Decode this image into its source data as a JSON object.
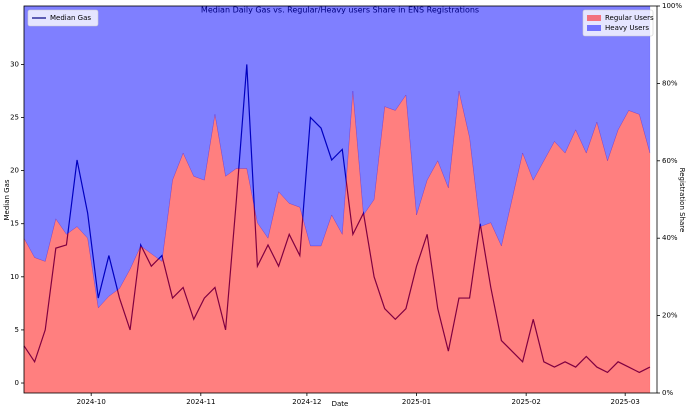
{
  "chart_data": {
    "type": "line",
    "title": "Median Daily Gas vs. Regular/Heavy users Share in ENS Registrations",
    "xlabel": "Date",
    "ylabel": "Median Gas",
    "y2label": "Registration Share",
    "x": [
      19978,
      19981,
      19984,
      19987,
      19990,
      19993,
      19996,
      19999,
      20002,
      20005,
      20008,
      20011,
      20014,
      20017,
      20020,
      20023,
      20026,
      20029,
      20032,
      20035,
      20038,
      20041,
      20044,
      20047,
      20050,
      20053,
      20056,
      20059,
      20062,
      20065,
      20068,
      20071,
      20074,
      20077,
      20080,
      20083,
      20086,
      20089,
      20092,
      20095,
      20098,
      20101,
      20104,
      20107,
      20110,
      20113,
      20116,
      20119,
      20122,
      20125,
      20128,
      20131,
      20134,
      20137,
      20140,
      20143,
      20146,
      20149,
      20152,
      20155
    ],
    "xlim": [
      19978,
      20157
    ],
    "xticks": [
      {
        "value": 19997,
        "label": "2024-10"
      },
      {
        "value": 20028,
        "label": "2024-11"
      },
      {
        "value": 20058,
        "label": "2024-12"
      },
      {
        "value": 20089,
        "label": "2025-01"
      },
      {
        "value": 20120,
        "label": "2025-02"
      },
      {
        "value": 20148,
        "label": "2025-03"
      }
    ],
    "ylim": [
      -0.94,
      35.5
    ],
    "yticks": [
      0,
      5,
      10,
      15,
      20,
      25,
      30
    ],
    "y2lim": [
      0,
      100
    ],
    "y2ticks": [
      {
        "value": 0,
        "label": "0%"
      },
      {
        "value": 20,
        "label": "20%"
      },
      {
        "value": 40,
        "label": "40%"
      },
      {
        "value": 60,
        "label": "60%"
      },
      {
        "value": 80,
        "label": "80%"
      },
      {
        "value": 100,
        "label": "100%"
      }
    ],
    "series": [
      {
        "name": "Median Gas",
        "type": "line",
        "color": "#000080",
        "legend": "upper left",
        "values": [
          3.5,
          2,
          5,
          12.7,
          13,
          21,
          16,
          8,
          12,
          8,
          5,
          13,
          11,
          12,
          8,
          9,
          6,
          8,
          9,
          5,
          17,
          30,
          11,
          13,
          11,
          14,
          12,
          25,
          24,
          21,
          22,
          14,
          16,
          10,
          7,
          6,
          7,
          11,
          14,
          7,
          3,
          8,
          8,
          15,
          9,
          4,
          3,
          2,
          6,
          2,
          1.5,
          2,
          1.5,
          2.5,
          1.5,
          1,
          2,
          1.5,
          1,
          1.5
        ]
      },
      {
        "name": "Regular Users",
        "type": "area",
        "axis": "y2",
        "color": "#ff0000",
        "legend": "upper right",
        "values": [
          40,
          35,
          34,
          45,
          41,
          43,
          40,
          22,
          25,
          27,
          32,
          38,
          36,
          34,
          55,
          62,
          56,
          55,
          72,
          56,
          58,
          58,
          44,
          40,
          52,
          49,
          48,
          38,
          38,
          46,
          41,
          78,
          46,
          50,
          74,
          73,
          77,
          46,
          55,
          60,
          53,
          78,
          66,
          43,
          44,
          38,
          50,
          62,
          55,
          60,
          65,
          62,
          68,
          62,
          70,
          60,
          68,
          73,
          72,
          62
        ]
      },
      {
        "name": "Heavy Users",
        "type": "area",
        "axis": "y2",
        "color": "#0000ff",
        "legend": "upper right",
        "values": [
          60,
          65,
          66,
          55,
          59,
          57,
          60,
          78,
          75,
          73,
          68,
          62,
          64,
          66,
          45,
          38,
          44,
          45,
          28,
          44,
          42,
          42,
          56,
          60,
          48,
          51,
          52,
          62,
          62,
          54,
          59,
          22,
          54,
          50,
          26,
          27,
          23,
          54,
          45,
          40,
          47,
          22,
          34,
          57,
          56,
          62,
          50,
          38,
          45,
          40,
          35,
          38,
          32,
          38,
          30,
          40,
          32,
          27,
          28,
          38
        ]
      }
    ]
  }
}
